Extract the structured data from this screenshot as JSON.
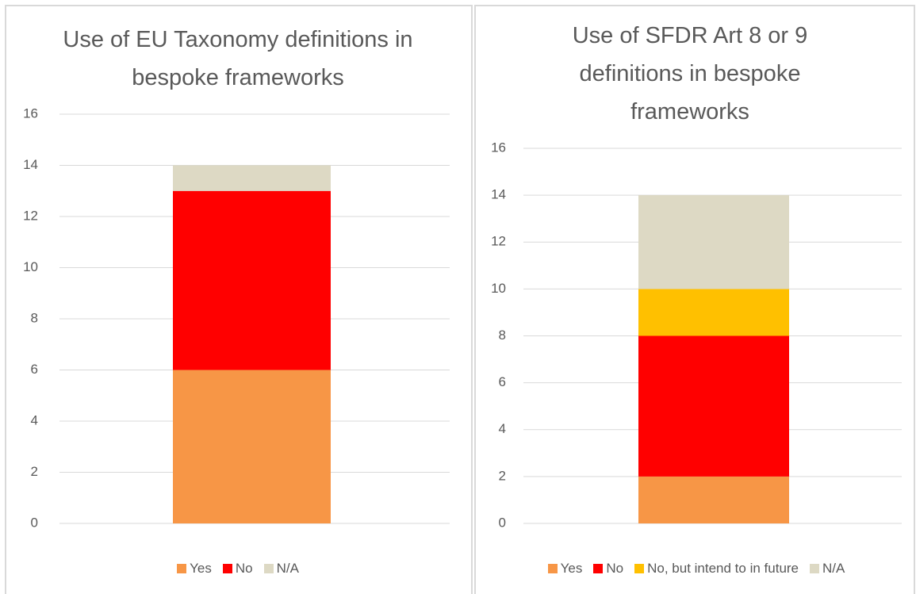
{
  "chart_data": [
    {
      "type": "bar",
      "stacked": true,
      "title": "Use of EU Taxonomy definitions in bespoke frameworks",
      "categories": [
        null
      ],
      "series": [
        {
          "name": "Yes",
          "color": "#f79646",
          "values": [
            6
          ]
        },
        {
          "name": "No",
          "color": "#ff0000",
          "values": [
            7
          ]
        },
        {
          "name": "N/A",
          "color": "#ddd9c4",
          "values": [
            1
          ]
        }
      ],
      "ylim": [
        0,
        16
      ],
      "yticks": [
        0,
        2,
        4,
        6,
        8,
        10,
        12,
        14,
        16
      ],
      "grid": true,
      "legend": "bottom"
    },
    {
      "type": "bar",
      "stacked": true,
      "title": "Use of SFDR Art 8 or 9 definitions in bespoke frameworks",
      "categories": [
        null
      ],
      "series": [
        {
          "name": "Yes",
          "color": "#f79646",
          "values": [
            2
          ]
        },
        {
          "name": "No",
          "color": "#ff0000",
          "values": [
            6
          ]
        },
        {
          "name": "No, but intend to in future",
          "color": "#ffc000",
          "values": [
            2
          ]
        },
        {
          "name": "N/A",
          "color": "#ddd9c4",
          "values": [
            4
          ]
        }
      ],
      "ylim": [
        0,
        16
      ],
      "yticks": [
        0,
        2,
        4,
        6,
        8,
        10,
        12,
        14,
        16
      ],
      "grid": true,
      "legend": "bottom"
    }
  ]
}
